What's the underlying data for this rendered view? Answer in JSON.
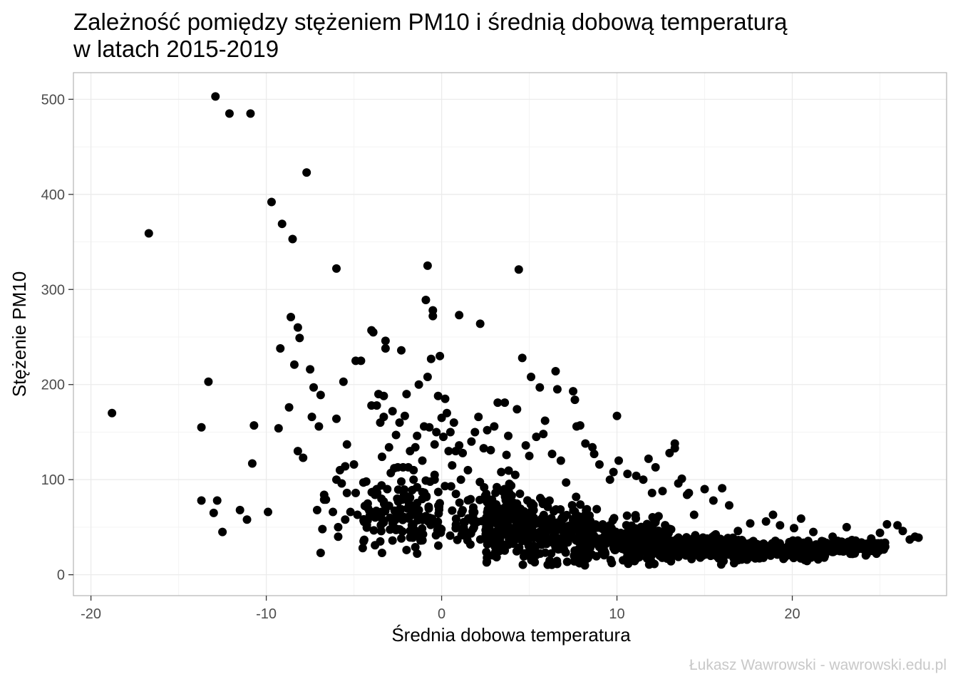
{
  "chart_data": {
    "type": "scatter",
    "title_lines": [
      "Zależność pomiędzy stężeniem PM10 i średnią dobową temperaturą",
      "w latach 2015-2019"
    ],
    "xlabel": "Średnia dobowa temperatura",
    "ylabel": "Stężenie PM10",
    "caption": "Łukasz Wawrowski - wawrowski.edu.pl",
    "xlim": [
      -21,
      28.8
    ],
    "ylim": [
      -22,
      528
    ],
    "x_ticks": [
      -20,
      -10,
      0,
      10,
      20
    ],
    "x_tick_labels": [
      "-20",
      "-10",
      "0",
      "10",
      "20"
    ],
    "y_ticks": [
      0,
      100,
      200,
      300,
      400,
      500
    ],
    "y_tick_labels": [
      "0",
      "100",
      "200",
      "300",
      "400",
      "500"
    ],
    "grid": true,
    "point_color": "#000000",
    "panel_border_color": "#b3b3b3",
    "grid_major_color": "#ebebeb",
    "grid_minor_color": "#f4f4f4",
    "points": [
      [
        -18.8,
        170
      ],
      [
        -16.7,
        359
      ],
      [
        -13.7,
        155
      ],
      [
        -13.7,
        78
      ],
      [
        -13.3,
        203
      ],
      [
        -13.0,
        65
      ],
      [
        -12.8,
        78
      ],
      [
        -12.5,
        45
      ],
      [
        -12.9,
        503
      ],
      [
        -12.1,
        485
      ],
      [
        -10.9,
        485
      ],
      [
        -11.5,
        68
      ],
      [
        -11.1,
        58
      ],
      [
        -10.8,
        117
      ],
      [
        -10.7,
        157
      ],
      [
        -9.9,
        66
      ],
      [
        -9.7,
        392
      ],
      [
        -9.3,
        154
      ],
      [
        -9.2,
        238
      ],
      [
        -9.1,
        369
      ],
      [
        -8.7,
        176
      ],
      [
        -8.6,
        271
      ],
      [
        -8.5,
        353
      ],
      [
        -8.4,
        221
      ],
      [
        -8.2,
        130
      ],
      [
        -8.2,
        260
      ],
      [
        -8.1,
        249
      ],
      [
        -7.9,
        123
      ],
      [
        -7.7,
        423
      ],
      [
        -7.5,
        216
      ],
      [
        -7.4,
        166
      ],
      [
        -7.3,
        197
      ],
      [
        -7.1,
        68
      ],
      [
        -7.0,
        156
      ],
      [
        -6.9,
        189
      ],
      [
        -6.9,
        23
      ],
      [
        -6.8,
        48
      ],
      [
        -6.7,
        84
      ],
      [
        -6.7,
        79
      ],
      [
        -6.6,
        79
      ],
      [
        -6.2,
        66
      ],
      [
        -6.0,
        100
      ],
      [
        -6.0,
        164
      ],
      [
        -6.0,
        322
      ],
      [
        -5.9,
        40
      ],
      [
        -5.9,
        50
      ],
      [
        -5.8,
        110
      ],
      [
        -5.7,
        96
      ],
      [
        -5.6,
        203
      ],
      [
        -5.5,
        114
      ],
      [
        -5.4,
        137
      ],
      [
        -5.5,
        58
      ],
      [
        -5.4,
        86
      ],
      [
        -5.2,
        66
      ],
      [
        -5.0,
        116
      ],
      [
        -4.9,
        86
      ],
      [
        -4.8,
        63
      ],
      [
        -4.9,
        225
      ],
      [
        -4.6,
        225
      ],
      [
        -4.5,
        28
      ],
      [
        -4.3,
        98
      ],
      [
        -4.2,
        70
      ],
      [
        -4.1,
        62
      ],
      [
        -4.0,
        178
      ],
      [
        -4.0,
        257
      ],
      [
        -3.9,
        255
      ],
      [
        -3.8,
        84
      ],
      [
        -3.8,
        31
      ],
      [
        -3.7,
        178
      ],
      [
        -3.7,
        90
      ],
      [
        -3.6,
        190
      ],
      [
        -3.5,
        160
      ],
      [
        -3.5,
        62
      ],
      [
        -3.5,
        35
      ],
      [
        -3.4,
        23
      ],
      [
        -3.4,
        124
      ],
      [
        -3.3,
        166
      ],
      [
        -3.3,
        188
      ],
      [
        -3.3,
        77
      ],
      [
        -3.2,
        246
      ],
      [
        -3.2,
        238
      ],
      [
        -3.1,
        90
      ],
      [
        -3.0,
        134
      ],
      [
        -2.9,
        107
      ],
      [
        -2.8,
        172
      ],
      [
        -2.8,
        36
      ],
      [
        -2.7,
        112
      ],
      [
        -2.6,
        47
      ],
      [
        -2.6,
        147
      ],
      [
        -2.5,
        113
      ],
      [
        -2.5,
        66
      ],
      [
        -2.4,
        160
      ],
      [
        -2.3,
        236
      ],
      [
        -2.3,
        98
      ],
      [
        -2.2,
        113
      ],
      [
        -2.1,
        60
      ],
      [
        -2.1,
        167
      ],
      [
        -2.0,
        190
      ],
      [
        -2.0,
        26
      ],
      [
        -1.9,
        113
      ],
      [
        -1.8,
        130
      ],
      [
        -1.8,
        46
      ],
      [
        -1.8,
        81
      ],
      [
        -1.7,
        52
      ],
      [
        -1.6,
        110
      ],
      [
        -1.6,
        100
      ],
      [
        -1.5,
        134
      ],
      [
        -1.5,
        29
      ],
      [
        -1.4,
        146
      ],
      [
        -1.4,
        92
      ],
      [
        -1.3,
        200
      ],
      [
        -1.3,
        68
      ],
      [
        -1.2,
        36
      ],
      [
        -1.1,
        120
      ],
      [
        -1.0,
        83
      ],
      [
        -1.0,
        156
      ],
      [
        -0.9,
        289
      ],
      [
        -0.8,
        325
      ],
      [
        -0.8,
        208
      ],
      [
        -0.7,
        155
      ],
      [
        -0.7,
        60
      ],
      [
        -0.6,
        227
      ],
      [
        -0.5,
        278
      ],
      [
        -0.5,
        272
      ],
      [
        -0.4,
        137
      ],
      [
        -0.4,
        100
      ],
      [
        -0.3,
        150
      ],
      [
        -0.2,
        188
      ],
      [
        -0.1,
        230
      ],
      [
        0.0,
        165
      ],
      [
        0.1,
        145
      ],
      [
        0.2,
        185
      ],
      [
        0.3,
        170
      ],
      [
        0.4,
        130
      ],
      [
        0.5,
        150
      ],
      [
        0.6,
        115
      ],
      [
        0.7,
        160
      ],
      [
        0.8,
        130
      ],
      [
        1.0,
        273
      ],
      [
        1.0,
        136
      ],
      [
        1.1,
        100
      ],
      [
        1.2,
        128
      ],
      [
        1.5,
        110
      ],
      [
        1.7,
        140
      ],
      [
        1.9,
        150
      ],
      [
        2.1,
        166
      ],
      [
        2.2,
        264
      ],
      [
        2.4,
        133
      ],
      [
        2.6,
        152
      ],
      [
        2.8,
        131
      ],
      [
        3.0,
        156
      ],
      [
        3.2,
        181
      ],
      [
        3.4,
        108
      ],
      [
        3.6,
        181
      ],
      [
        3.7,
        126
      ],
      [
        3.8,
        146
      ],
      [
        4.2,
        105
      ],
      [
        4.3,
        174
      ],
      [
        4.4,
        321
      ],
      [
        4.6,
        228
      ],
      [
        4.8,
        136
      ],
      [
        5.0,
        125
      ],
      [
        5.1,
        208
      ],
      [
        5.4,
        145
      ],
      [
        5.6,
        197
      ],
      [
        5.8,
        148
      ],
      [
        5.9,
        162
      ],
      [
        6.3,
        127
      ],
      [
        6.5,
        214
      ],
      [
        6.6,
        195
      ],
      [
        6.8,
        120
      ],
      [
        7.1,
        97
      ],
      [
        7.5,
        193
      ],
      [
        7.6,
        184
      ],
      [
        7.7,
        156
      ],
      [
        7.9,
        157
      ],
      [
        8.2,
        138
      ],
      [
        8.6,
        134
      ],
      [
        8.7,
        127
      ],
      [
        9.0,
        116
      ],
      [
        9.6,
        100
      ],
      [
        9.8,
        108
      ],
      [
        10.0,
        167
      ],
      [
        10.1,
        120
      ],
      [
        10.6,
        106
      ],
      [
        11.1,
        104
      ],
      [
        11.5,
        100
      ],
      [
        11.8,
        122
      ],
      [
        12.0,
        86
      ],
      [
        12.2,
        113
      ],
      [
        12.6,
        88
      ],
      [
        13.0,
        128
      ],
      [
        13.3,
        138
      ],
      [
        13.3,
        133
      ],
      [
        13.5,
        96
      ],
      [
        13.7,
        101
      ],
      [
        14.0,
        84
      ],
      [
        14.1,
        86
      ],
      [
        14.4,
        63
      ],
      [
        15.0,
        90
      ],
      [
        15.5,
        78
      ],
      [
        16.0,
        91
      ],
      [
        16.4,
        73
      ],
      [
        16.9,
        46
      ],
      [
        17.6,
        54
      ],
      [
        18.5,
        56
      ],
      [
        18.9,
        63
      ],
      [
        19.3,
        52
      ],
      [
        20.1,
        49
      ],
      [
        20.5,
        59
      ],
      [
        21.2,
        45
      ],
      [
        22.3,
        40
      ],
      [
        23.1,
        50
      ],
      [
        24.5,
        38
      ],
      [
        25.0,
        44
      ],
      [
        25.4,
        53
      ],
      [
        26.0,
        52
      ],
      [
        26.3,
        46
      ],
      [
        26.7,
        37
      ],
      [
        27.0,
        40
      ],
      [
        27.2,
        39
      ],
      [
        -0.9,
        99
      ],
      [
        -0.4,
        105
      ]
    ],
    "dense_clusters": [
      {
        "x_center": 0.0,
        "x_spread": 4.5,
        "y_center": 62,
        "y_spread": 30,
        "n": 210
      },
      {
        "x_center": 5.5,
        "x_spread": 3.0,
        "y_center": 46,
        "y_spread": 28,
        "n": 340
      },
      {
        "x_center": 10.5,
        "x_spread": 2.6,
        "y_center": 36,
        "y_spread": 19,
        "n": 300
      },
      {
        "x_center": 15.0,
        "x_spread": 2.3,
        "y_center": 28,
        "y_spread": 11,
        "n": 260
      },
      {
        "x_center": 19.5,
        "x_spread": 2.2,
        "y_center": 26,
        "y_spread": 8,
        "n": 220
      },
      {
        "x_center": 23.5,
        "x_spread": 1.8,
        "y_center": 29,
        "y_spread": 6,
        "n": 140
      }
    ]
  }
}
